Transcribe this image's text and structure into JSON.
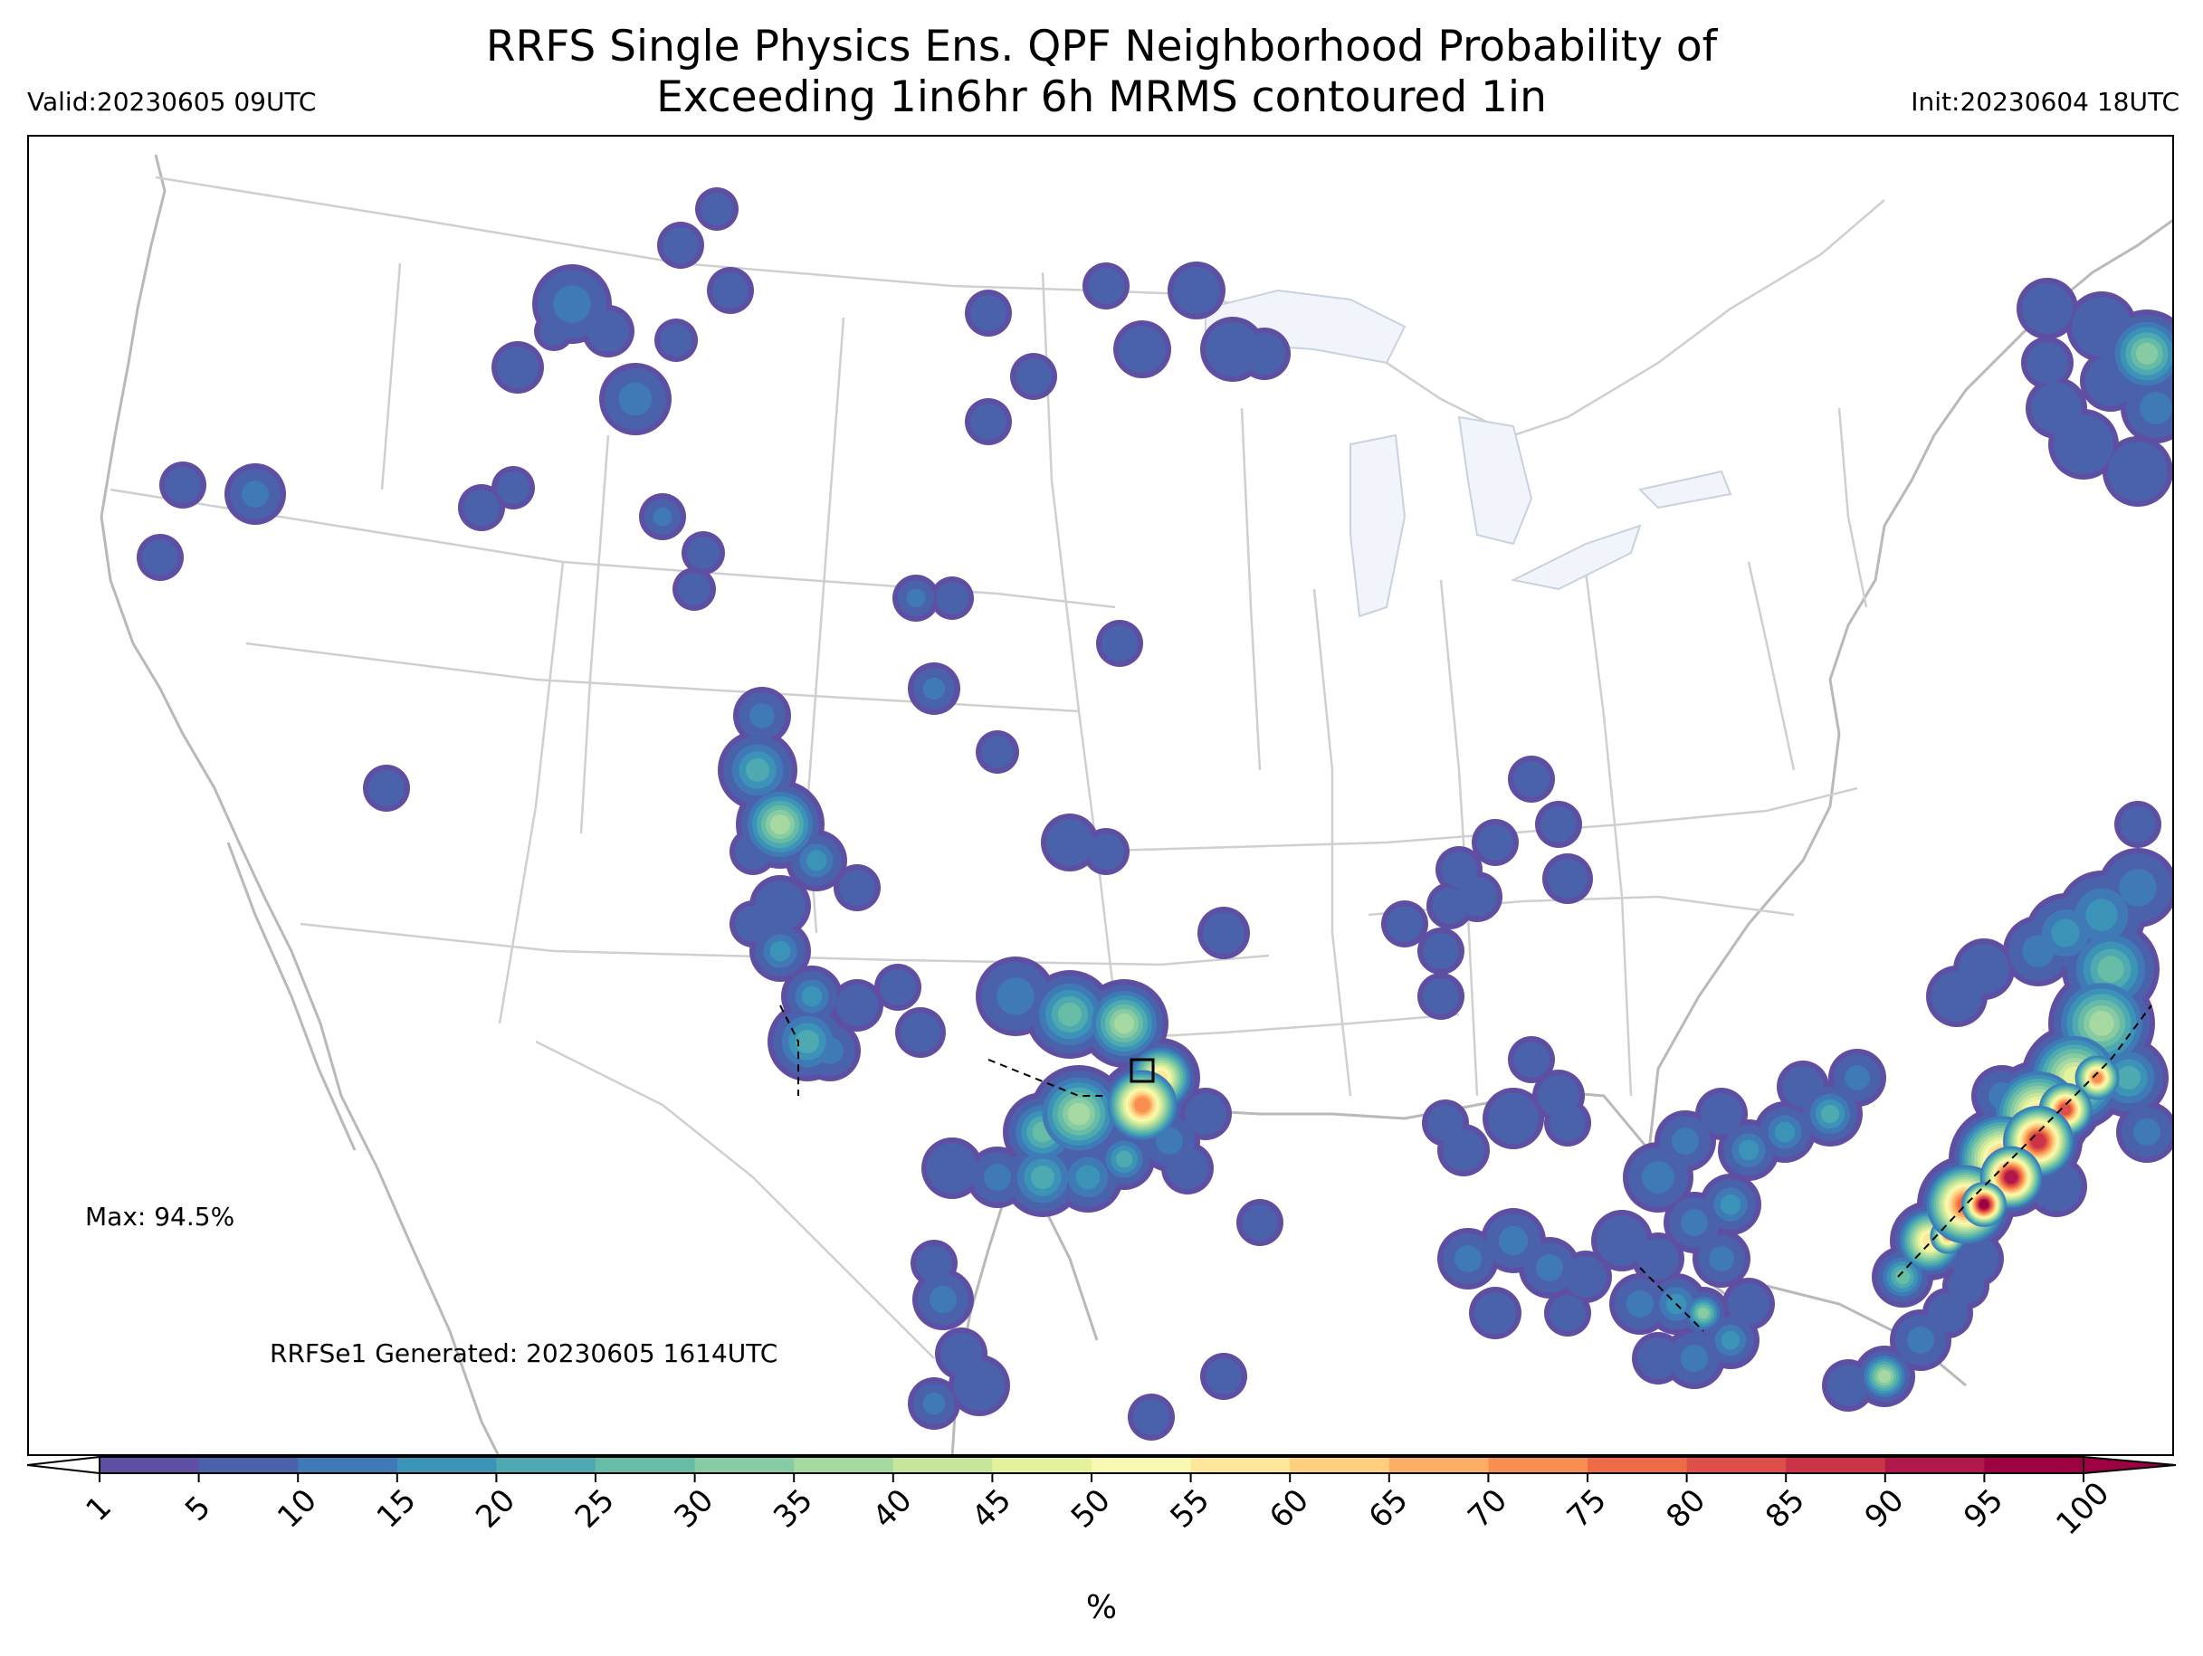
{
  "header": {
    "title_line1": "RRFS Single Physics Ens. QPF Neighborhood Probability of",
    "title_line2": "Exceeding 1in6hr 6h MRMS contoured 1in",
    "valid": "Valid:20230605 09UTC",
    "init": "Init:20230604 18UTC"
  },
  "notes": {
    "max": "Max: 94.5%",
    "generated": "RRFSe1 Generated: 20230605 1614UTC"
  },
  "colorbar": {
    "ticks": [
      "1",
      "5",
      "10",
      "15",
      "20",
      "25",
      "30",
      "35",
      "40",
      "45",
      "50",
      "55",
      "60",
      "65",
      "70",
      "75",
      "80",
      "85",
      "90",
      "95",
      "100"
    ],
    "colors": [
      "#5e4fa2",
      "#4a62ab",
      "#3f7ab6",
      "#3c93b8",
      "#4ea9b1",
      "#67bca5",
      "#86cba4",
      "#a6d9a1",
      "#c6e69c",
      "#e3f29b",
      "#f7f9b2",
      "#fde79a",
      "#fdcf7f",
      "#fcae65",
      "#f88e52",
      "#ee6b45",
      "#de4f49",
      "#cc3349",
      "#b0184c",
      "#9e0142"
    ],
    "unit": "%"
  },
  "map": {
    "maximum_probability": 94.5,
    "max_marker_icon": "box-marker-icon"
  }
}
